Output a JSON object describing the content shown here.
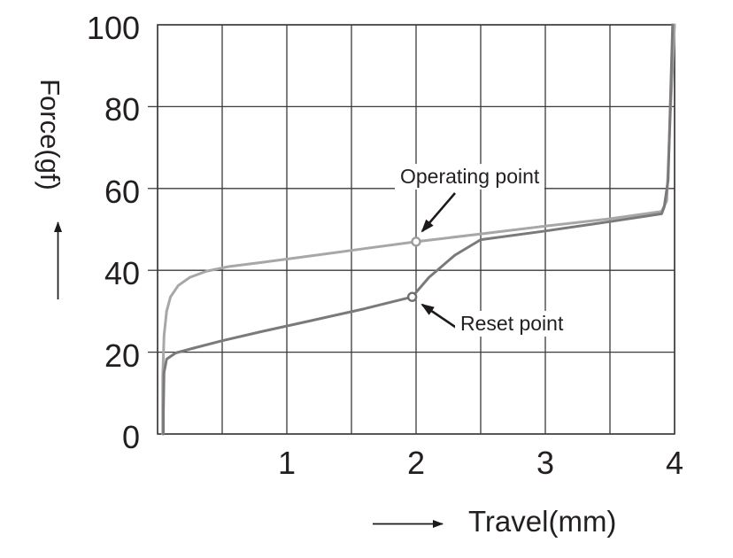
{
  "figure": {
    "background": "#ffffff",
    "text_color": "#231f20",
    "grid_color": "#3d3a39",
    "arrow_color": "#1d1a19"
  },
  "chart_data": {
    "type": "line",
    "title": "",
    "xlabel": "Travel(mm)",
    "ylabel": "Force(gf)",
    "xlim": [
      0,
      4
    ],
    "ylim": [
      0,
      100
    ],
    "x_grid_step": 0.5,
    "y_grid_step": 20,
    "grid": true,
    "x_tick_values": [
      1,
      2,
      3,
      4
    ],
    "x_tick_labels": [
      "1",
      "2",
      "3",
      "4"
    ],
    "y_tick_values": [
      0,
      20,
      40,
      60,
      80,
      100
    ],
    "y_tick_labels": [
      "0",
      "20",
      "40",
      "60",
      "80",
      "100"
    ],
    "series": [
      {
        "name": "press-stroke",
        "color": "#a8a7a7",
        "width": 3,
        "points": [
          [
            0.04,
            0
          ],
          [
            0.04,
            14
          ],
          [
            0.05,
            24
          ],
          [
            0.07,
            30
          ],
          [
            0.1,
            33.5
          ],
          [
            0.16,
            36.3
          ],
          [
            0.25,
            38.3
          ],
          [
            0.38,
            39.8
          ],
          [
            0.55,
            40.9
          ],
          [
            0.8,
            41.9
          ],
          [
            1.2,
            43.6
          ],
          [
            1.6,
            45.3
          ],
          [
            2.0,
            47.0
          ],
          [
            2.5,
            48.9
          ],
          [
            3.0,
            50.8
          ],
          [
            3.5,
            52.6
          ],
          [
            3.9,
            54.4
          ],
          [
            3.94,
            57
          ],
          [
            3.97,
            80
          ],
          [
            4.0,
            100
          ]
        ]
      },
      {
        "name": "release-stroke",
        "color": "#7b7979",
        "width": 3,
        "points": [
          [
            3.985,
            100
          ],
          [
            3.95,
            62
          ],
          [
            3.92,
            55.5
          ],
          [
            3.9,
            53.8
          ],
          [
            3.5,
            51.9
          ],
          [
            3.0,
            49.6
          ],
          [
            2.5,
            47.5
          ],
          [
            2.3,
            43.7
          ],
          [
            2.1,
            38.3
          ],
          [
            1.97,
            33.5
          ],
          [
            1.6,
            30.6
          ],
          [
            1.2,
            27.8
          ],
          [
            0.8,
            25.0
          ],
          [
            0.5,
            22.8
          ],
          [
            0.28,
            21.0
          ],
          [
            0.14,
            19.8
          ],
          [
            0.07,
            18.3
          ],
          [
            0.05,
            15
          ],
          [
            0.045,
            6
          ],
          [
            0.045,
            0
          ]
        ]
      }
    ],
    "markers": [
      {
        "name": "operating-point-marker",
        "x": 2.0,
        "y": 47.0,
        "stroke": "#9e9d9d"
      },
      {
        "name": "reset-point-marker",
        "x": 1.97,
        "y": 33.5,
        "stroke": "#706e6e"
      }
    ],
    "annotations": [
      {
        "name": "operating",
        "label": "Operating point",
        "target": [
          2.0,
          47.0
        ]
      },
      {
        "name": "reset",
        "label": "Reset point",
        "target": [
          1.97,
          33.5
        ]
      }
    ]
  }
}
